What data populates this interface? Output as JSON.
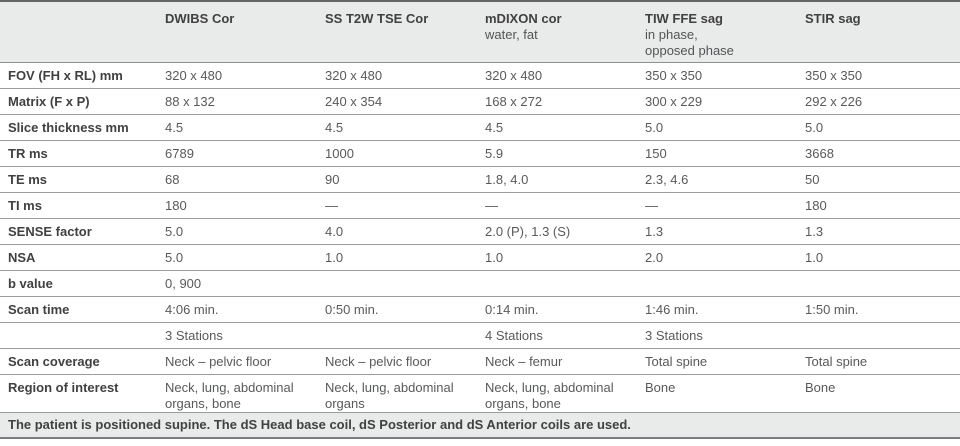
{
  "colors": {
    "header_bg": "#e9eaea",
    "footer_bg": "#e9eaea",
    "top_border": "#636466",
    "row_line": "#9b9c9e",
    "label_text": "#414042",
    "value_text": "#58595b"
  },
  "table": {
    "columns": [
      {
        "title": "DWIBS Cor",
        "subtitle": ""
      },
      {
        "title": "SS T2W TSE Cor",
        "subtitle": ""
      },
      {
        "title": "mDIXON cor",
        "subtitle": "water, fat"
      },
      {
        "title": "TIW FFE sag",
        "subtitle": "in phase,\nopposed phase"
      },
      {
        "title": "STIR sag",
        "subtitle": ""
      }
    ],
    "rows": [
      {
        "label": "FOV (FH x RL) mm",
        "cells": [
          "320 x 480",
          "320 x 480",
          "320 x 480",
          "350 x 350",
          "350 x 350"
        ]
      },
      {
        "label": "Matrix (F x P)",
        "cells": [
          "88 x 132",
          "240 x 354",
          "168 x 272",
          "300 x 229",
          "292 x 226"
        ]
      },
      {
        "label": "Slice thickness mm",
        "cells": [
          "4.5",
          "4.5",
          "4.5",
          "5.0",
          "5.0"
        ]
      },
      {
        "label": "TR ms",
        "cells": [
          "6789",
          "1000",
          "5.9",
          "150",
          "3668"
        ]
      },
      {
        "label": "TE ms",
        "cells": [
          "68",
          "90",
          "1.8, 4.0",
          "2.3, 4.6",
          "50"
        ]
      },
      {
        "label": "TI ms",
        "cells": [
          "180",
          "—",
          "—",
          "—",
          "180"
        ]
      },
      {
        "label": "SENSE factor",
        "cells": [
          "5.0",
          "4.0",
          "2.0 (P), 1.3 (S)",
          "1.3",
          "1.3"
        ]
      },
      {
        "label": "NSA",
        "cells": [
          "5.0",
          "1.0",
          "1.0",
          "2.0",
          "1.0"
        ]
      },
      {
        "label": "b value",
        "cells": [
          "0, 900",
          "",
          "",
          "",
          ""
        ]
      },
      {
        "label": "Scan time",
        "cells": [
          "4:06 min.",
          "0:50 min.",
          "0:14 min.",
          "1:46 min.",
          "1:50 min."
        ]
      },
      {
        "label": "",
        "cells": [
          "3 Stations",
          "",
          "4 Stations",
          "3 Stations",
          ""
        ]
      },
      {
        "label": "Scan coverage",
        "cells": [
          "Neck – pelvic floor",
          "Neck – pelvic floor",
          "Neck – femur",
          "Total spine",
          "Total spine"
        ]
      },
      {
        "label": "Region of interest",
        "cells": [
          "Neck, lung, abdominal organs, bone",
          "Neck, lung, abdominal organs",
          "Neck, lung, abdominal organs, bone",
          "Bone",
          "Bone"
        ]
      }
    ],
    "footnote": "The patient is positioned supine. The dS Head base coil, dS Posterior and dS Anterior coils are used."
  }
}
